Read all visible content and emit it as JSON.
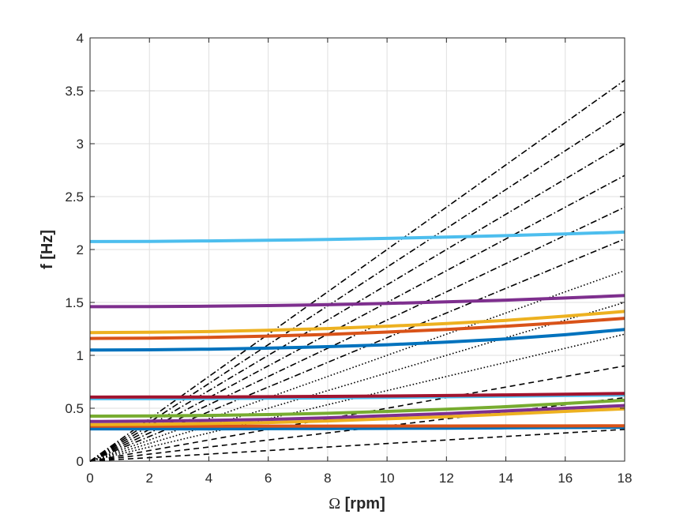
{
  "chart_data": {
    "type": "line",
    "title": "",
    "xlabel_symbol": "Ω",
    "xlabel_unit": " [rpm]",
    "ylabel": "f [Hz]",
    "xlim": [
      0,
      18
    ],
    "ylim": [
      0,
      4
    ],
    "xticks": [
      0,
      2,
      4,
      6,
      8,
      10,
      12,
      14,
      16,
      18
    ],
    "yticks": [
      0,
      0.5,
      1,
      1.5,
      2,
      2.5,
      3,
      3.5,
      4
    ],
    "xtick_labels": [
      "0",
      "2",
      "4",
      "6",
      "8",
      "10",
      "12",
      "14",
      "16",
      "18"
    ],
    "ytick_labels": [
      "0",
      "0.5",
      "1",
      "1.5",
      "2",
      "2.5",
      "3",
      "3.5",
      "4"
    ],
    "grid": true,
    "x": [
      0,
      2,
      4,
      6,
      8,
      10,
      12,
      14,
      16,
      18
    ],
    "series": [
      {
        "color": "#0072BD",
        "values": [
          0.305,
          0.305,
          0.305,
          0.307,
          0.308,
          0.31,
          0.312,
          0.315,
          0.318,
          0.32
        ]
      },
      {
        "color": "#D95319",
        "values": [
          0.33,
          0.33,
          0.33,
          0.331,
          0.331,
          0.332,
          0.332,
          0.333,
          0.333,
          0.334
        ]
      },
      {
        "color": "#EDB120",
        "values": [
          0.345,
          0.348,
          0.355,
          0.365,
          0.38,
          0.4,
          0.42,
          0.445,
          0.47,
          0.495
        ]
      },
      {
        "color": "#7E2F8E",
        "values": [
          0.375,
          0.378,
          0.385,
          0.395,
          0.41,
          0.43,
          0.45,
          0.475,
          0.5,
          0.525
        ]
      },
      {
        "color": "#77AC30",
        "values": [
          0.425,
          0.427,
          0.432,
          0.44,
          0.452,
          0.47,
          0.49,
          0.515,
          0.545,
          0.575
        ]
      },
      {
        "color": "#4DBEEE",
        "values": [
          0.59,
          0.59,
          0.592,
          0.595,
          0.598,
          0.603,
          0.608,
          0.614,
          0.62,
          0.625
        ]
      },
      {
        "color": "#A2142F",
        "values": [
          0.605,
          0.606,
          0.607,
          0.609,
          0.612,
          0.616,
          0.62,
          0.626,
          0.632,
          0.64
        ]
      },
      {
        "color": "#0072BD",
        "values": [
          1.05,
          1.052,
          1.058,
          1.068,
          1.082,
          1.1,
          1.125,
          1.155,
          1.195,
          1.245
        ]
      },
      {
        "color": "#D95319",
        "values": [
          1.16,
          1.163,
          1.17,
          1.182,
          1.198,
          1.22,
          1.245,
          1.275,
          1.31,
          1.35
        ]
      },
      {
        "color": "#EDB120",
        "values": [
          1.215,
          1.218,
          1.225,
          1.237,
          1.253,
          1.275,
          1.3,
          1.33,
          1.37,
          1.415
        ]
      },
      {
        "color": "#7E2F8E",
        "values": [
          1.46,
          1.461,
          1.464,
          1.47,
          1.478,
          1.49,
          1.505,
          1.522,
          1.542,
          1.565
        ]
      },
      {
        "color": "#4DBEEE",
        "values": [
          2.075,
          2.077,
          2.081,
          2.087,
          2.095,
          2.105,
          2.117,
          2.131,
          2.147,
          2.165
        ]
      }
    ],
    "excitation_lines": [
      {
        "style": "dash",
        "x": [
          0,
          18
        ],
        "y": [
          0,
          0.3
        ]
      },
      {
        "style": "dash",
        "x": [
          0,
          18
        ],
        "y": [
          0,
          0.6
        ]
      },
      {
        "style": "dash",
        "x": [
          0,
          18
        ],
        "y": [
          0,
          0.9
        ]
      },
      {
        "style": "dot",
        "x": [
          0,
          18
        ],
        "y": [
          0,
          1.2
        ]
      },
      {
        "style": "dot",
        "x": [
          0,
          18
        ],
        "y": [
          0,
          1.5
        ]
      },
      {
        "style": "dot",
        "x": [
          0,
          18
        ],
        "y": [
          0,
          1.8
        ]
      },
      {
        "style": "dashdot",
        "x": [
          0,
          18
        ],
        "y": [
          0,
          2.1
        ]
      },
      {
        "style": "dashdot",
        "x": [
          0,
          18
        ],
        "y": [
          0,
          2.4
        ]
      },
      {
        "style": "dashdot",
        "x": [
          0,
          18
        ],
        "y": [
          0,
          2.7
        ]
      },
      {
        "style": "dashdot",
        "x": [
          0,
          18
        ],
        "y": [
          0,
          3.0
        ]
      },
      {
        "style": "dashdot",
        "x": [
          0,
          18
        ],
        "y": [
          0,
          3.3
        ]
      },
      {
        "style": "dashdot",
        "x": [
          0,
          18
        ],
        "y": [
          0,
          3.6
        ]
      }
    ]
  }
}
